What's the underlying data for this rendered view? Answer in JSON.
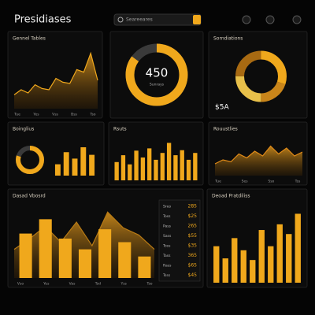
{
  "header": {
    "title": "Presidiases",
    "search": "Seareeares"
  },
  "panels": [
    {
      "type": "area",
      "title": "Gennel Tables",
      "values": [
        22,
        30,
        25,
        38,
        32,
        30,
        48,
        42,
        40,
        62,
        58,
        88,
        45
      ],
      "ylim": [
        0,
        100
      ],
      "x_labels": [
        "Tue",
        "Yes",
        "Vss",
        "Bss",
        "Tso"
      ],
      "color": "#f0a81c"
    },
    {
      "type": "donut",
      "value": 85,
      "ylim": [
        0,
        100
      ],
      "center": "450",
      "sub": "Sunrays",
      "color": "#f0a81c"
    },
    {
      "type": "pie",
      "title": "Sorndiations",
      "values": [
        30,
        20,
        25,
        25
      ],
      "colors": [
        "#f0a81c",
        "#c9851a",
        "#e8c04a",
        "#a86a12"
      ],
      "label": "$5A"
    },
    {
      "type": "donut-bars",
      "title": "Boinglius",
      "value": 80,
      "ylim": [
        0,
        100
      ],
      "values": [
        30,
        62,
        45,
        75,
        55
      ],
      "color": "#f0a81c"
    },
    {
      "type": "bars",
      "title": "Rsuts",
      "values": [
        40,
        55,
        35,
        65,
        50,
        70,
        45,
        60,
        82,
        55,
        66,
        45,
        60
      ],
      "ylim": [
        0,
        100
      ],
      "color": "#f0a81c"
    },
    {
      "type": "area",
      "title": "Rouustlies",
      "values": [
        30,
        40,
        35,
        55,
        45,
        62,
        50,
        75,
        55,
        70,
        50,
        60
      ],
      "ylim": [
        0,
        100
      ],
      "x_labels": [
        "Tue",
        "Ses",
        "Sso",
        "Tss"
      ],
      "color": "#e08a18"
    },
    {
      "type": "combo",
      "title": "Dasad Vbosrd",
      "values": [
        62,
        82,
        55,
        40,
        68,
        50,
        30
      ],
      "area": [
        40,
        55,
        72,
        50,
        78,
        45,
        92,
        70,
        60,
        40
      ],
      "ylim": [
        0,
        100
      ],
      "x_labels": [
        "Vso",
        "Yes",
        "Vas",
        "Tsd",
        "Yss",
        "Tso"
      ],
      "color": "#f0a81c",
      "table": [
        [
          "Sreo",
          "285"
        ],
        [
          "Toss",
          "$25"
        ],
        [
          "Pass",
          "265"
        ],
        [
          "Sass",
          "$55"
        ],
        [
          "Toss",
          "$35"
        ],
        [
          "Tass",
          "365"
        ],
        [
          "Rass",
          "$65"
        ],
        [
          "Tsss",
          "$45"
        ]
      ]
    },
    {
      "type": "bars",
      "title": "Deoad Pratdiliss",
      "values": [
        45,
        30,
        55,
        40,
        28,
        65,
        45,
        72,
        60,
        85
      ],
      "ylim": [
        0,
        100
      ],
      "color": "#f0a81c"
    }
  ]
}
